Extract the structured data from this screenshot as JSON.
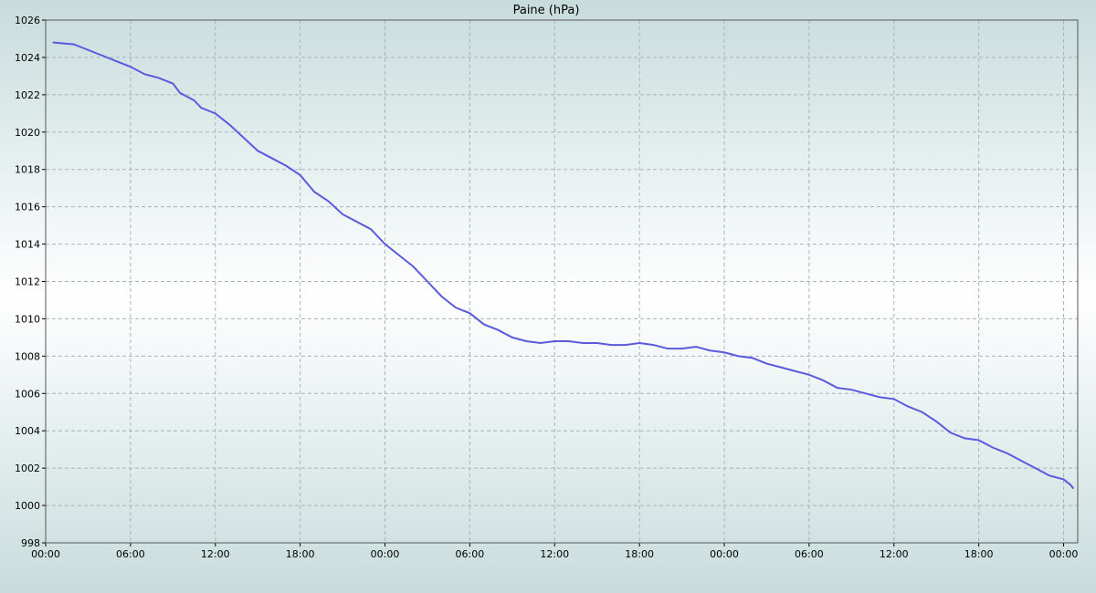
{
  "chart_data": {
    "type": "line",
    "title": "Paine (hPa)",
    "x": [
      0.5,
      2,
      3,
      4,
      5,
      6,
      7,
      8,
      9,
      9.5,
      10.5,
      11,
      12,
      13,
      14,
      15,
      16,
      17,
      18,
      19,
      20,
      21,
      22,
      23,
      24,
      25,
      26,
      27,
      28,
      29,
      30,
      31,
      32,
      33,
      34,
      35,
      36,
      37,
      38,
      39,
      40,
      41,
      42,
      43,
      44,
      45,
      46,
      47,
      48,
      49,
      50,
      51,
      52,
      53,
      54,
      55,
      56,
      57,
      58,
      59,
      60,
      61,
      62,
      63,
      64,
      65,
      66,
      67,
      68,
      69,
      70,
      71,
      72,
      72.5,
      72.7
    ],
    "series": [
      {
        "name": "Paine",
        "color": "#5a5ade",
        "values": [
          1024.8,
          1024.7,
          1024.4,
          1024.1,
          1023.8,
          1023.5,
          1023.1,
          1022.9,
          1022.6,
          1022.1,
          1021.7,
          1021.3,
          1021.0,
          1020.4,
          1019.7,
          1019.0,
          1018.6,
          1018.2,
          1017.7,
          1016.8,
          1016.3,
          1015.6,
          1015.2,
          1014.8,
          1014.0,
          1013.4,
          1012.8,
          1012.0,
          1011.2,
          1010.6,
          1010.3,
          1009.7,
          1009.4,
          1009.0,
          1008.8,
          1008.7,
          1008.8,
          1008.8,
          1008.7,
          1008.7,
          1008.6,
          1008.6,
          1008.7,
          1008.6,
          1008.4,
          1008.4,
          1008.5,
          1008.3,
          1008.2,
          1008.0,
          1007.9,
          1007.6,
          1007.4,
          1007.2,
          1007.0,
          1006.7,
          1006.3,
          1006.2,
          1006.0,
          1005.8,
          1005.7,
          1005.3,
          1005.0,
          1004.5,
          1003.9,
          1003.6,
          1003.5,
          1003.1,
          1002.8,
          1002.4,
          1002.0,
          1001.6,
          1001.4,
          1001.1,
          1000.9
        ]
      }
    ],
    "xlim": [
      0,
      73
    ],
    "xticks": [
      {
        "value": 0,
        "label": "00:00"
      },
      {
        "value": 6,
        "label": "06:00"
      },
      {
        "value": 12,
        "label": "12:00"
      },
      {
        "value": 18,
        "label": "18:00"
      },
      {
        "value": 24,
        "label": "00:00"
      },
      {
        "value": 30,
        "label": "06:00"
      },
      {
        "value": 36,
        "label": "12:00"
      },
      {
        "value": 42,
        "label": "18:00"
      },
      {
        "value": 48,
        "label": "00:00"
      },
      {
        "value": 54,
        "label": "06:00"
      },
      {
        "value": 60,
        "label": "12:00"
      },
      {
        "value": 66,
        "label": "18:00"
      },
      {
        "value": 72,
        "label": "00:00"
      }
    ],
    "ylim": [
      998,
      1026
    ],
    "yticks": [
      998,
      1000,
      1002,
      1004,
      1006,
      1008,
      1010,
      1012,
      1014,
      1016,
      1018,
      1020,
      1022,
      1024,
      1026
    ],
    "grid": true
  }
}
